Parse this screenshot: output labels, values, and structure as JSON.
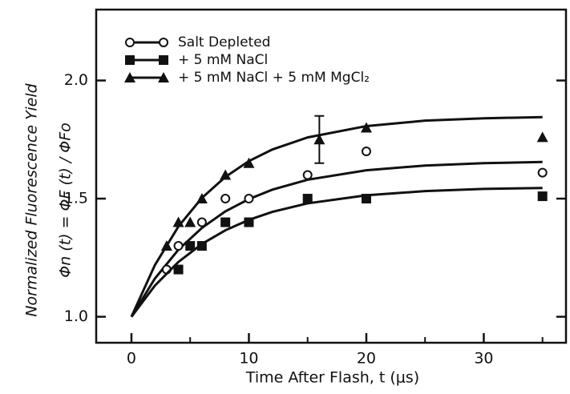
{
  "chart_data": {
    "type": "scatter",
    "xlabel": "Time After Flash, t (μs)",
    "ylabel": "Normalized Fluorescence Yield",
    "ylabel2": "Φn (t) = ΦF (t) / ΦFo",
    "xlim": [
      -3,
      37
    ],
    "ylim": [
      0.89,
      2.3
    ],
    "xticks": [
      0,
      10,
      20,
      30
    ],
    "xminor": [
      5,
      15,
      25,
      35
    ],
    "yticks": [
      {
        "value": 1.0,
        "label": "1.0"
      },
      {
        "value": 1.5,
        "label": "1.5"
      },
      {
        "value": 2.0,
        "label": "2.0"
      }
    ],
    "legend": "upper left",
    "fit_x": [
      0,
      2,
      4,
      6,
      8,
      10,
      12,
      15,
      20,
      25,
      30,
      35
    ],
    "series": [
      {
        "name": "Salt Depleted",
        "marker": "circle",
        "color": "#111",
        "x": [
          3,
          4,
          6,
          8,
          10,
          15,
          20,
          35
        ],
        "values": [
          1.2,
          1.3,
          1.4,
          1.5,
          1.5,
          1.6,
          1.7,
          1.61
        ],
        "fit": [
          1.0,
          1.162,
          1.284,
          1.376,
          1.446,
          1.498,
          1.538,
          1.58,
          1.62,
          1.64,
          1.65,
          1.655
        ]
      },
      {
        "name": "+ 5 mM NaCl",
        "marker": "square",
        "color": "#111",
        "x": [
          4,
          5,
          6,
          8,
          10,
          15,
          20,
          35
        ],
        "values": [
          1.2,
          1.3,
          1.3,
          1.4,
          1.4,
          1.5,
          1.5,
          1.51
        ],
        "fit": [
          1.0,
          1.132,
          1.232,
          1.308,
          1.366,
          1.41,
          1.444,
          1.48,
          1.514,
          1.532,
          1.541,
          1.545
        ]
      },
      {
        "name": "+ 5 mM NaCl + 5 mM MgCl₂",
        "marker": "triangle",
        "color": "#111",
        "x": [
          3,
          4,
          5,
          6,
          8,
          10,
          16,
          20,
          35
        ],
        "values": [
          1.3,
          1.4,
          1.4,
          1.5,
          1.6,
          1.65,
          1.75,
          1.8,
          1.76
        ],
        "errors": [
          null,
          null,
          null,
          null,
          null,
          null,
          0.1,
          null,
          null
        ],
        "fit": [
          1.0,
          1.219,
          1.382,
          1.503,
          1.592,
          1.659,
          1.708,
          1.759,
          1.807,
          1.83,
          1.84,
          1.845
        ]
      }
    ]
  }
}
